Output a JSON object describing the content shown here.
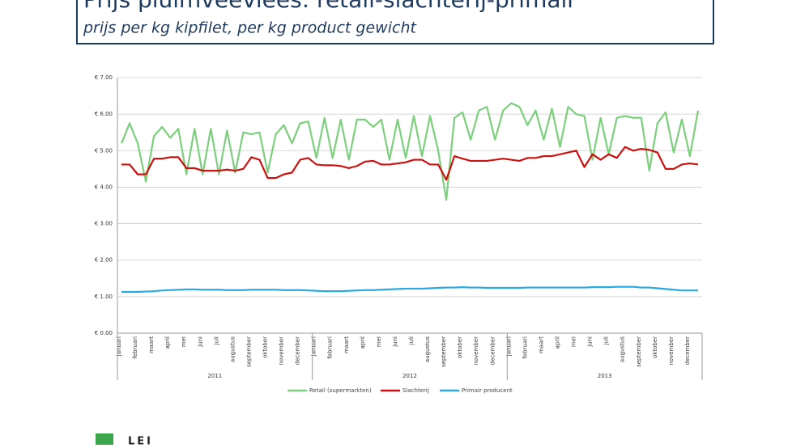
{
  "header": {
    "title": "Prijs pluimveevlees: retail-slachterij-primair",
    "subtitle": "prijs per kg kipfilet, per kg product gewicht"
  },
  "logo": "LEI",
  "chart_data": {
    "type": "line",
    "categories": [
      "januari",
      null,
      "februari",
      null,
      "maart",
      null,
      "april",
      null,
      "mei",
      null,
      "juni",
      null,
      "juli",
      null,
      "augustus",
      null,
      "september",
      null,
      "oktober",
      null,
      "november",
      null,
      "december",
      null,
      "januari",
      null,
      "februari",
      null,
      "maart",
      null,
      "april",
      null,
      "mei",
      null,
      "juni",
      null,
      "juli",
      null,
      "augustus",
      null,
      "september",
      null,
      "oktober",
      null,
      "november",
      null,
      "december",
      null,
      "januari",
      null,
      "februari",
      null,
      "maart",
      null,
      "april",
      null,
      "mei",
      null,
      "juni",
      null,
      "juli",
      null,
      "augustus",
      null,
      "september",
      null,
      "oktober",
      null,
      "november",
      null,
      "december",
      null
    ],
    "x_groups": [
      "2011",
      "2012",
      "2013"
    ],
    "ylim": [
      0,
      7
    ],
    "yticks": [
      {
        "value": 0,
        "label": "€ 0.00"
      },
      {
        "value": 1,
        "label": "€ 1.00"
      },
      {
        "value": 2,
        "label": "€ 2.00"
      },
      {
        "value": 3,
        "label": "€ 3.00"
      },
      {
        "value": 4,
        "label": "€ 4.00"
      },
      {
        "value": 5,
        "label": "€ 5.00"
      },
      {
        "value": 6,
        "label": "€ 6.00"
      },
      {
        "value": 7,
        "label": "€ 7.00"
      }
    ],
    "grid": true,
    "series": [
      {
        "name": "Retail (supermarkten)",
        "color": "#7ccf7c",
        "values": [
          5.2,
          5.75,
          5.2,
          4.15,
          5.4,
          5.65,
          5.35,
          5.6,
          4.35,
          5.6,
          4.35,
          5.6,
          4.35,
          5.55,
          4.4,
          5.5,
          5.45,
          5.5,
          4.4,
          5.45,
          5.7,
          5.2,
          5.75,
          5.8,
          4.8,
          5.9,
          4.8,
          5.85,
          4.75,
          5.85,
          5.85,
          5.65,
          5.85,
          4.75,
          5.85,
          4.8,
          5.95,
          4.85,
          5.95,
          5.0,
          3.65,
          5.9,
          6.05,
          5.3,
          6.1,
          6.2,
          5.3,
          6.1,
          6.3,
          6.2,
          5.7,
          6.1,
          5.3,
          6.15,
          5.1,
          6.2,
          6.0,
          5.95,
          4.75,
          5.9,
          4.9,
          5.9,
          5.95,
          5.9,
          5.9,
          4.45,
          5.75,
          6.05,
          4.95,
          5.85,
          4.85,
          6.1
        ]
      },
      {
        "name": "Slachterij",
        "color": "#cc1111",
        "values": [
          4.62,
          4.62,
          4.35,
          4.35,
          4.78,
          4.78,
          4.82,
          4.82,
          4.52,
          4.52,
          4.45,
          4.45,
          4.45,
          4.48,
          4.45,
          4.5,
          4.82,
          4.75,
          4.25,
          4.25,
          4.35,
          4.4,
          4.75,
          4.8,
          4.62,
          4.6,
          4.6,
          4.58,
          4.52,
          4.58,
          4.7,
          4.72,
          4.62,
          4.62,
          4.65,
          4.68,
          4.75,
          4.75,
          4.62,
          4.62,
          4.2,
          4.85,
          4.78,
          4.72,
          4.72,
          4.72,
          4.75,
          4.78,
          4.75,
          4.72,
          4.8,
          4.8,
          4.85,
          4.85,
          4.9,
          4.95,
          5.0,
          4.55,
          4.9,
          4.75,
          4.9,
          4.8,
          5.1,
          5.0,
          5.05,
          5.02,
          4.95,
          4.5,
          4.5,
          4.62,
          4.65,
          4.62
        ]
      },
      {
        "name": "Primair producent",
        "color": "#2aa9e0",
        "values": [
          1.13,
          1.13,
          1.13,
          1.14,
          1.15,
          1.17,
          1.18,
          1.19,
          1.2,
          1.2,
          1.19,
          1.19,
          1.19,
          1.18,
          1.18,
          1.18,
          1.19,
          1.19,
          1.19,
          1.19,
          1.18,
          1.18,
          1.18,
          1.17,
          1.16,
          1.15,
          1.15,
          1.15,
          1.16,
          1.17,
          1.18,
          1.18,
          1.19,
          1.2,
          1.21,
          1.22,
          1.22,
          1.22,
          1.23,
          1.24,
          1.25,
          1.25,
          1.26,
          1.25,
          1.25,
          1.24,
          1.24,
          1.24,
          1.24,
          1.24,
          1.25,
          1.25,
          1.25,
          1.25,
          1.25,
          1.25,
          1.25,
          1.25,
          1.26,
          1.26,
          1.26,
          1.27,
          1.27,
          1.27,
          1.25,
          1.25,
          1.23,
          1.21,
          1.19,
          1.17,
          1.17,
          1.17
        ]
      }
    ]
  }
}
